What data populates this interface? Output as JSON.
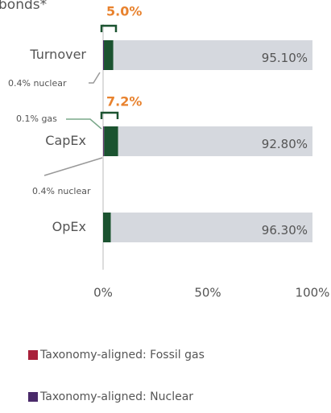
{
  "chart_data": {
    "type": "bar",
    "orientation": "horizontal",
    "stacked": true,
    "title": "bonds*",
    "categories": [
      "Turnover",
      "CapEx",
      "OpEx"
    ],
    "series": [
      {
        "name": "Taxonomy-aligned: Fossil gas",
        "color": "#a8203a",
        "values": [
          0,
          0.1,
          0
        ]
      },
      {
        "name": "Taxonomy-aligned: Nuclear",
        "color": "#4a2a6a",
        "values": [
          0.4,
          0.4,
          0
        ]
      },
      {
        "color": "#1b5330",
        "values": [
          4.5,
          6.7,
          3.7
        ],
        "value_labels": [
          "4.50%",
          "6.70%",
          "3.70%"
        ]
      },
      {
        "color": "#d5d8de",
        "values": [
          95.1,
          92.8,
          96.3
        ],
        "value_labels": [
          "95.10%",
          "92.80%",
          "96.30%"
        ]
      }
    ],
    "annotations": [
      "5.0%",
      "0.4% nuclear",
      "7.2%",
      "0.1% gas",
      "0.4% nuclear"
    ],
    "xlim": [
      0,
      100
    ],
    "xticks": [
      {
        "value": 0,
        "label": "0%"
      },
      {
        "value": 50,
        "label": "50%"
      },
      {
        "value": 100,
        "label": "100%"
      }
    ]
  }
}
